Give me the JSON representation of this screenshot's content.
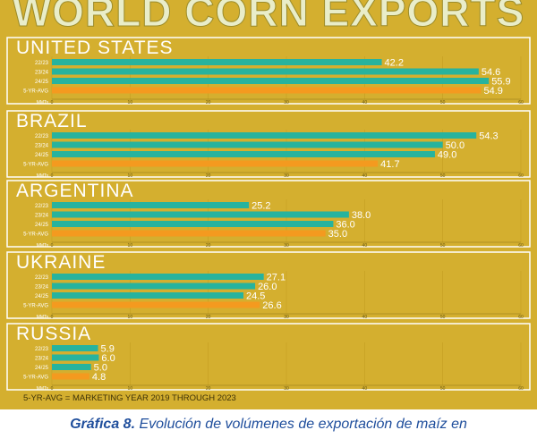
{
  "title": "WORLD CORN EXPORTS",
  "footnote": "5-YR-AVG = MARKETING YEAR 2019 THROUGH 2023",
  "caption": {
    "label": "Gráfica 8.",
    "text": "Evolución de volúmenes de exportación de maíz en"
  },
  "colors": {
    "background": "#d4af2f",
    "teal": "#27b39e",
    "orange": "#f49a1f",
    "panel": "#ffffff",
    "caption": "#1f4e9c"
  },
  "chart_data": {
    "type": "bar",
    "orientation": "horizontal",
    "unit_label": "MMTs",
    "categories": [
      "22/23",
      "23/24",
      "24/25",
      "5-YR-AVG"
    ],
    "ticks": [
      "0",
      "10",
      "20",
      "30",
      "40",
      "50",
      "60"
    ],
    "xlim": [
      0,
      60
    ],
    "panels": [
      {
        "country": "UNITED STATES",
        "values": [
          42.2,
          54.6,
          55.9,
          54.9
        ],
        "labels": [
          "42.2",
          "54.6",
          "55.9",
          "54.9"
        ]
      },
      {
        "country": "BRAZIL",
        "values": [
          54.3,
          50.0,
          49.0,
          41.7
        ],
        "labels": [
          "54.3",
          "50.0",
          "49.0",
          "41.7"
        ]
      },
      {
        "country": "ARGENTINA",
        "values": [
          25.2,
          38.0,
          36.0,
          35.0
        ],
        "labels": [
          "25.2",
          "38.0",
          "36.0",
          "35.0"
        ]
      },
      {
        "country": "UKRAINE",
        "values": [
          27.1,
          26.0,
          24.5,
          26.6
        ],
        "labels": [
          "27.1",
          "26.0",
          "24.5",
          "26.6"
        ]
      },
      {
        "country": "RUSSIA",
        "values": [
          5.9,
          6.0,
          5.0,
          4.8
        ],
        "labels": [
          "5.9",
          "6.0",
          "5.0",
          "4.8"
        ]
      }
    ]
  }
}
